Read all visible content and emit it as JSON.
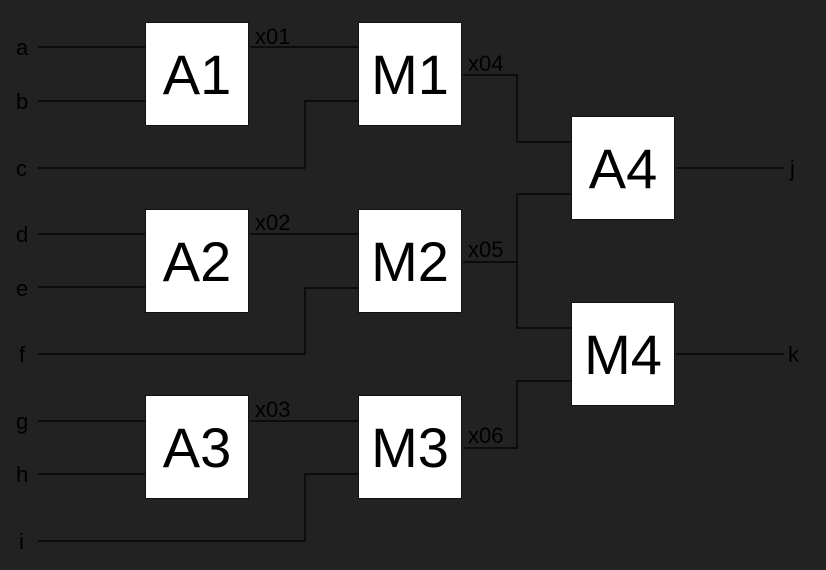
{
  "colors": {
    "background": "#222222",
    "box_fill": "#ffffff",
    "text": "#000000",
    "wire": "#000000"
  },
  "inputs": [
    "a",
    "b",
    "c",
    "d",
    "e",
    "f",
    "g",
    "h",
    "i"
  ],
  "outputs": [
    "j",
    "k"
  ],
  "blocks": {
    "A1": "A1",
    "A2": "A2",
    "A3": "A3",
    "M1": "M1",
    "M2": "M2",
    "M3": "M3",
    "A4": "A4",
    "M4": "M4"
  },
  "signals": {
    "x01": "x01",
    "x02": "x02",
    "x03": "x03",
    "x04": "x04",
    "x05": "x05",
    "x06": "x06"
  }
}
